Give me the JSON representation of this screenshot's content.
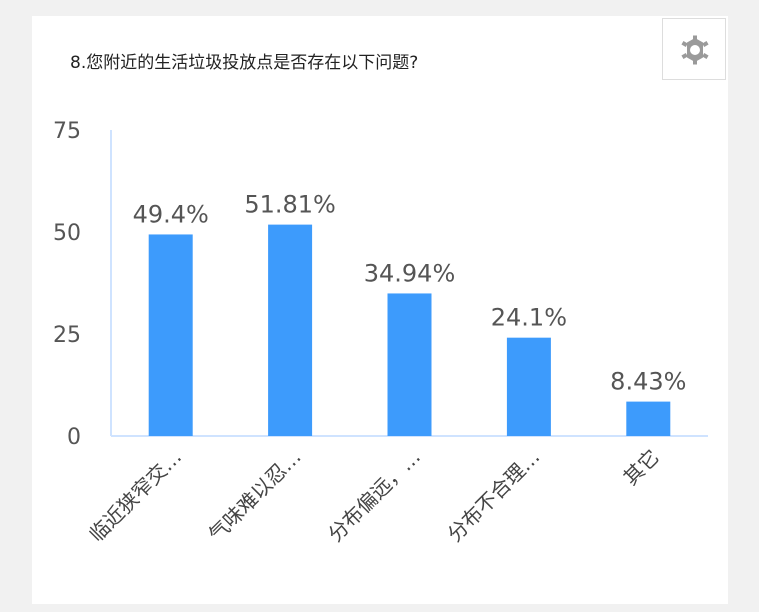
{
  "chart_data": {
    "type": "bar",
    "title": "8.您附近的生活垃圾投放点是否存在以下问题?",
    "categories": [
      "临近狭窄交…",
      "气味难以忍…",
      "分布偏远，…",
      "分布不合理…",
      "其它"
    ],
    "values": [
      49.4,
      51.81,
      34.94,
      24.1,
      8.43
    ],
    "value_labels": [
      "49.4%",
      "51.81%",
      "34.94%",
      "24.1%",
      "8.43%"
    ],
    "yticks": [
      "0",
      "25",
      "50",
      "75"
    ],
    "ylim": [
      0,
      75
    ],
    "xlabel": "",
    "ylabel": "",
    "grid": false,
    "bar_color": "#3d9bfc"
  },
  "toolbar": {
    "settings_icon": "gear-icon"
  }
}
